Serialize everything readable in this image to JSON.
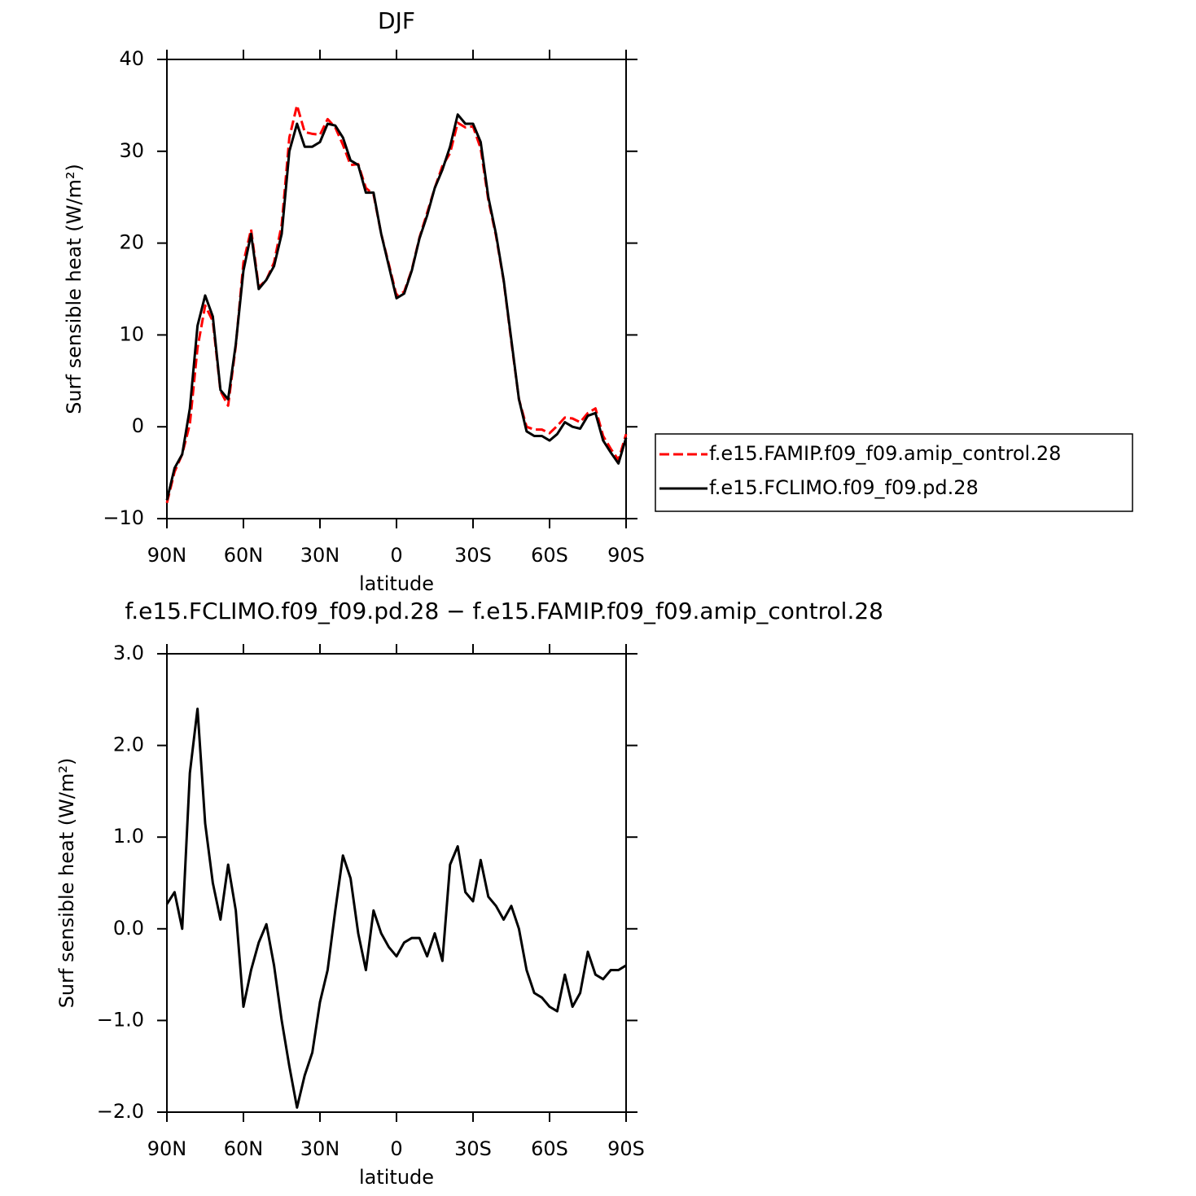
{
  "chart_data": [
    {
      "type": "line",
      "title": "DJF",
      "y_label": "Surf sensible heat (W/m²)",
      "x_label": "latitude",
      "x": [
        90,
        87,
        84,
        81,
        78,
        75,
        72,
        69,
        66,
        63,
        60,
        57,
        54,
        51,
        48,
        45,
        42,
        39,
        36,
        33,
        30,
        27,
        24,
        21,
        18,
        15,
        12,
        9,
        6,
        3,
        0,
        -3,
        -6,
        -9,
        -12,
        -15,
        -18,
        -21,
        -24,
        -27,
        -30,
        -33,
        -36,
        -39,
        -42,
        -45,
        -48,
        -51,
        -54,
        -57,
        -60,
        -63,
        -66,
        -69,
        -72,
        -75,
        -78,
        -81,
        -84,
        -87,
        -90
      ],
      "xlim": [
        90,
        -90
      ],
      "xticks": [
        {
          "value": 90,
          "label": "90N"
        },
        {
          "value": 60,
          "label": "60N"
        },
        {
          "value": 30,
          "label": "30N"
        },
        0,
        {
          "value": -30,
          "label": "30S"
        },
        {
          "value": -60,
          "label": "60S"
        },
        {
          "value": -90,
          "label": "90S"
        }
      ],
      "ylim": [
        -10,
        40
      ],
      "yticks": [
        {
          "value": -10,
          "label": "−10"
        },
        0,
        10,
        20,
        30,
        40
      ],
      "legend": "right",
      "series": [
        {
          "name": "f.e15.FAMIP.f09_f09.amip_control.28",
          "color": "#ff0000",
          "style": "dashed",
          "values": [
            -8.3,
            -4.9,
            -3,
            0.3,
            8.6,
            13.2,
            11.5,
            3.9,
            2.3,
            8.8,
            17.9,
            21.5,
            15.2,
            16,
            17.9,
            22,
            31.5,
            35,
            32.1,
            31.9,
            31.8,
            33.5,
            32.6,
            30.7,
            28.5,
            28.6,
            26,
            25.3,
            21,
            17.7,
            14.3,
            14.7,
            17.1,
            20.6,
            23.3,
            26,
            28.4,
            29.8,
            33.1,
            32.6,
            32.7,
            30.3,
            24.7,
            20.8,
            15.9,
            9.3,
            3,
            0,
            -0.3,
            -0.3,
            -0.7,
            0.1,
            1,
            0.9,
            0.5,
            1.5,
            2,
            -1,
            -2.4,
            -3.6,
            -0.8
          ]
        },
        {
          "name": "f.e15.FCLIMO.f09_f09.pd.28",
          "color": "#000000",
          "style": "solid",
          "values": [
            -8,
            -4.5,
            -3,
            2,
            11,
            14.3,
            12,
            4,
            3,
            9,
            17,
            21,
            15,
            16,
            17.5,
            21,
            30,
            33,
            30.5,
            30.5,
            31,
            33,
            32.8,
            31.5,
            29,
            28.5,
            25.5,
            25.5,
            21,
            17.5,
            14,
            14.5,
            17,
            20.5,
            23,
            26,
            28,
            30.5,
            34,
            33,
            33,
            31,
            25,
            21,
            16,
            9.5,
            3,
            -0.5,
            -1,
            -1,
            -1.5,
            -0.8,
            0.5,
            0,
            -0.2,
            1.2,
            1.5,
            -1.5,
            -2.8,
            -4,
            -1.2
          ]
        }
      ]
    },
    {
      "type": "line",
      "title": "f.e15.FCLIMO.f09_f09.pd.28 − f.e15.FAMIP.f09_f09.amip_control.28",
      "y_label": "Surf sensible heat (W/m²)",
      "x_label": "latitude",
      "x": [
        90,
        87,
        84,
        81,
        78,
        75,
        72,
        69,
        66,
        63,
        60,
        57,
        54,
        51,
        48,
        45,
        42,
        39,
        36,
        33,
        30,
        27,
        24,
        21,
        18,
        15,
        12,
        9,
        6,
        3,
        0,
        -3,
        -6,
        -9,
        -12,
        -15,
        -18,
        -21,
        -24,
        -27,
        -30,
        -33,
        -36,
        -39,
        -42,
        -45,
        -48,
        -51,
        -54,
        -57,
        -60,
        -63,
        -66,
        -69,
        -72,
        -75,
        -78,
        -81,
        -84,
        -87,
        -90
      ],
      "xlim": [
        90,
        -90
      ],
      "xticks": [
        {
          "value": 90,
          "label": "90N"
        },
        {
          "value": 60,
          "label": "60N"
        },
        {
          "value": 30,
          "label": "30N"
        },
        0,
        {
          "value": -30,
          "label": "30S"
        },
        {
          "value": -60,
          "label": "60S"
        },
        {
          "value": -90,
          "label": "90S"
        }
      ],
      "ylim": [
        -2,
        3
      ],
      "yticks": [
        {
          "value": -2,
          "label": "−2.0"
        },
        {
          "value": -1,
          "label": "−1.0"
        },
        {
          "value": 0,
          "label": "0.0"
        },
        {
          "value": 1,
          "label": "1.0"
        },
        {
          "value": 2,
          "label": "2.0"
        },
        {
          "value": 3,
          "label": "3.0"
        }
      ],
      "color": "#000000",
      "values": [
        0.27,
        0.4,
        0,
        1.7,
        2.4,
        1.15,
        0.5,
        0.1,
        0.7,
        0.2,
        -0.85,
        -0.45,
        -0.15,
        0.05,
        -0.4,
        -1,
        -1.5,
        -1.95,
        -1.6,
        -1.35,
        -0.8,
        -0.45,
        0.2,
        0.8,
        0.55,
        -0.05,
        -0.45,
        0.2,
        -0.05,
        -0.2,
        -0.3,
        -0.15,
        -0.1,
        -0.1,
        -0.3,
        -0.05,
        -0.35,
        0.7,
        0.9,
        0.4,
        0.3,
        0.75,
        0.35,
        0.25,
        0.1,
        0.25,
        0,
        -0.45,
        -0.7,
        -0.75,
        -0.85,
        -0.9,
        -0.5,
        -0.85,
        -0.7,
        -0.25,
        -0.5,
        -0.55,
        -0.45,
        -0.45,
        -0.4
      ]
    }
  ]
}
